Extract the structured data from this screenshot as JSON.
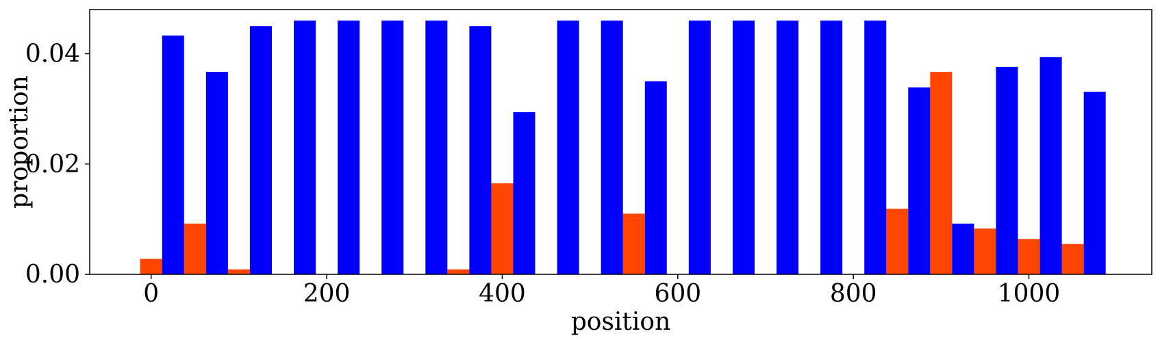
{
  "chart_data": {
    "type": "bar",
    "xlabel": "position",
    "ylabel": "proportion",
    "xlim": [
      -70,
      1140
    ],
    "ylim": [
      0,
      0.048
    ],
    "bin_width": 50,
    "xticks": [
      0,
      200,
      400,
      600,
      800,
      1000
    ],
    "xtick_labels": [
      "0",
      "200",
      "400",
      "600",
      "800",
      "1000"
    ],
    "yticks": [
      0,
      0.02,
      0.04
    ],
    "ytick_labels": [
      "0.00",
      "0.02",
      "0.04"
    ],
    "grid": false,
    "legend": "none",
    "series": [
      {
        "color": "#ff4500",
        "bins": [
          {
            "x0": -12.5,
            "x1": 12.5,
            "value": 0.0028
          },
          {
            "x0": 37.5,
            "x1": 62.5,
            "value": 0.0092
          },
          {
            "x0": 87.5,
            "x1": 112.5,
            "value": 0.0009
          },
          {
            "x0": 337.5,
            "x1": 362.5,
            "value": 0.0009
          },
          {
            "x0": 387.5,
            "x1": 412.5,
            "value": 0.0165
          },
          {
            "x0": 537.5,
            "x1": 562.5,
            "value": 0.011
          },
          {
            "x0": 837.5,
            "x1": 862.5,
            "value": 0.0119
          },
          {
            "x0": 887.5,
            "x1": 912.5,
            "value": 0.0367
          },
          {
            "x0": 937.5,
            "x1": 962.5,
            "value": 0.0083
          },
          {
            "x0": 987.5,
            "x1": 1012.5,
            "value": 0.0064
          },
          {
            "x0": 1037.5,
            "x1": 1062.5,
            "value": 0.0055
          }
        ]
      },
      {
        "color": "#0000ff",
        "bins": [
          {
            "x0": 12.5,
            "x1": 37.5,
            "value": 0.0433
          },
          {
            "x0": 62.5,
            "x1": 87.5,
            "value": 0.0367
          },
          {
            "x0": 112.5,
            "x1": 137.5,
            "value": 0.045
          },
          {
            "x0": 162.5,
            "x1": 187.5,
            "value": 0.046
          },
          {
            "x0": 212.5,
            "x1": 237.5,
            "value": 0.046
          },
          {
            "x0": 262.5,
            "x1": 287.5,
            "value": 0.046
          },
          {
            "x0": 312.5,
            "x1": 337.5,
            "value": 0.046
          },
          {
            "x0": 362.5,
            "x1": 387.5,
            "value": 0.045
          },
          {
            "x0": 412.5,
            "x1": 437.5,
            "value": 0.0294
          },
          {
            "x0": 462.5,
            "x1": 487.5,
            "value": 0.046
          },
          {
            "x0": 512.5,
            "x1": 537.5,
            "value": 0.046
          },
          {
            "x0": 562.5,
            "x1": 587.5,
            "value": 0.035
          },
          {
            "x0": 612.5,
            "x1": 637.5,
            "value": 0.046
          },
          {
            "x0": 662.5,
            "x1": 687.5,
            "value": 0.046
          },
          {
            "x0": 712.5,
            "x1": 737.5,
            "value": 0.046
          },
          {
            "x0": 762.5,
            "x1": 787.5,
            "value": 0.046
          },
          {
            "x0": 812.5,
            "x1": 837.5,
            "value": 0.046
          },
          {
            "x0": 862.5,
            "x1": 887.5,
            "value": 0.0339
          },
          {
            "x0": 912.5,
            "x1": 937.5,
            "value": 0.0092
          },
          {
            "x0": 962.5,
            "x1": 987.5,
            "value": 0.0376
          },
          {
            "x0": 1012.5,
            "x1": 1037.5,
            "value": 0.0394
          },
          {
            "x0": 1062.5,
            "x1": 1087.5,
            "value": 0.0331
          }
        ]
      }
    ]
  }
}
